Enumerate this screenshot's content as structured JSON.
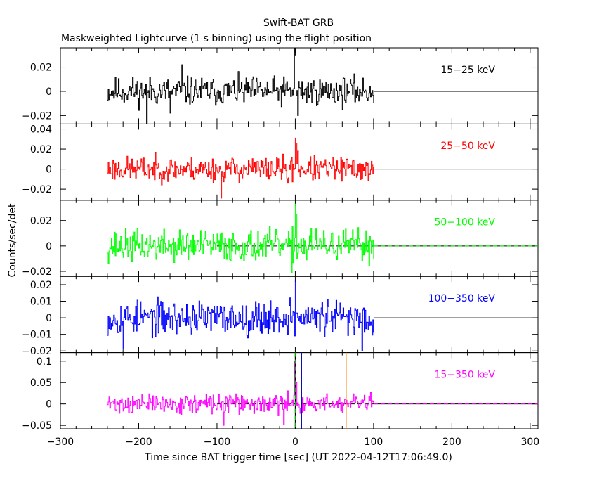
{
  "figure": {
    "title": "Swift-BAT GRB",
    "subtitle": "Maskweighted Lightcurve (1 s binning) using the flight position",
    "xlabel": "Time since BAT trigger time [sec] (UT 2022-04-12T17:06:49.0)",
    "ylabel": "Counts/sec/det"
  },
  "chart_data": {
    "type": "line",
    "title": "Swift-BAT GRB",
    "subtitle": "Maskweighted Lightcurve (1 s binning) using the flight position",
    "xlabel": "Time since BAT trigger time [sec] (UT 2022-04-12T17:06:49.0)",
    "ylabel": "Counts/sec/det",
    "xlim": [
      -300,
      310
    ],
    "x_ticks": [
      -300,
      -200,
      -100,
      0,
      100,
      200,
      300
    ],
    "x_tick_labels": [
      "−300",
      "−200",
      "−100",
      "0",
      "100",
      "200",
      "300"
    ],
    "binning_sec": 1,
    "data_range": [
      -240,
      100
    ],
    "grid": false,
    "panels": [
      {
        "band": "15−25 keV",
        "color": "#000000",
        "ylim": [
          -0.027,
          0.036
        ],
        "yticks": [
          0.02,
          0,
          -0.02
        ],
        "ytick_labels": [
          "0.02",
          "0",
          "−0.02"
        ],
        "noise_amp": 0.0085,
        "spikes": [
          {
            "t": -1,
            "v": 0.036
          },
          {
            "t": 0,
            "v": 0.03
          },
          {
            "t": 3,
            "v": -0.02
          },
          {
            "t": -190,
            "v": -0.03
          },
          {
            "t": -160,
            "v": -0.018
          },
          {
            "t": -145,
            "v": 0.022
          }
        ],
        "seed": 11,
        "dashed_zero": false
      },
      {
        "band": "25−50 keV",
        "color": "#ff0000",
        "ylim": [
          -0.031,
          0.045
        ],
        "yticks": [
          0.04,
          0.02,
          0,
          -0.02
        ],
        "ytick_labels": [
          "0.04",
          "0.02",
          "0",
          "−0.02"
        ],
        "noise_amp": 0.009,
        "spikes": [
          {
            "t": 0,
            "v": 0.031
          },
          {
            "t": 1,
            "v": 0.026
          },
          {
            "t": 3,
            "v": 0.018
          },
          {
            "t": -10,
            "v": -0.014
          },
          {
            "t": -95,
            "v": -0.029
          }
        ],
        "seed": 23,
        "dashed_zero": false
      },
      {
        "band": "50−100 keV",
        "color": "#00ff00",
        "ylim": [
          -0.024,
          0.036
        ],
        "yticks": [
          0.02,
          0,
          -0.02
        ],
        "ytick_labels": [
          "0.02",
          "0",
          "−0.02"
        ],
        "noise_amp": 0.009,
        "spikes": [
          {
            "t": 0,
            "v": 0.033
          },
          {
            "t": 1,
            "v": 0.025
          },
          {
            "t": -5,
            "v": -0.021
          },
          {
            "t": 20,
            "v": 0.014
          }
        ],
        "seed": 37,
        "dashed_zero": true
      },
      {
        "band": "100−350 keV",
        "color": "#0000ff",
        "ylim": [
          -0.021,
          0.025
        ],
        "yticks": [
          0.02,
          0.01,
          0,
          -0.01,
          -0.02
        ],
        "ytick_labels": [
          "0.02",
          "0.01",
          "0",
          "−0.01",
          "−0.02"
        ],
        "noise_amp": 0.0075,
        "spikes": [
          {
            "t": 0,
            "v": 0.022
          },
          {
            "t": -7,
            "v": 0.012
          },
          {
            "t": 85,
            "v": -0.02
          },
          {
            "t": -220,
            "v": -0.019
          }
        ],
        "seed": 53,
        "dashed_zero": false
      },
      {
        "band": "15−350 keV",
        "color": "#ff00ff",
        "ylim": [
          -0.058,
          0.12
        ],
        "yticks": [
          0.1,
          0.05,
          0,
          -0.05
        ],
        "ytick_labels": [
          "0.1",
          "0.05",
          "0",
          "−0.05"
        ],
        "noise_amp": 0.016,
        "spikes": [
          {
            "t": -1,
            "v": 0.1
          },
          {
            "t": 0,
            "v": 0.07
          },
          {
            "t": 1,
            "v": 0.05
          },
          {
            "t": -92,
            "v": -0.05
          },
          {
            "t": -15,
            "v": -0.048
          }
        ],
        "seed": 71,
        "dashed_zero": true,
        "vlines": [
          {
            "t": 0,
            "color": "#000000",
            "dashed": false
          },
          {
            "t": 0,
            "color": "#00aa00",
            "dashed": true
          },
          {
            "t": 8,
            "color": "#0000aa",
            "dashed": false
          },
          {
            "t": 65,
            "color": "#ff8000",
            "dashed": false
          }
        ]
      }
    ]
  }
}
